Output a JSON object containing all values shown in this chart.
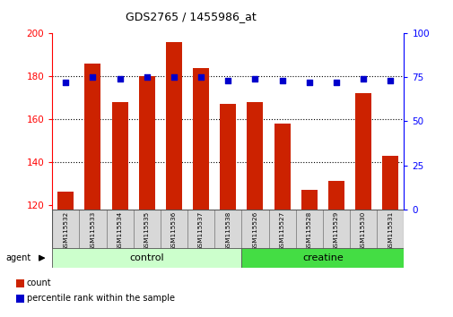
{
  "title": "GDS2765 / 1455986_at",
  "categories": [
    "GSM115532",
    "GSM115533",
    "GSM115534",
    "GSM115535",
    "GSM115536",
    "GSM115537",
    "GSM115538",
    "GSM115526",
    "GSM115527",
    "GSM115528",
    "GSM115529",
    "GSM115530",
    "GSM115531"
  ],
  "bar_values": [
    126,
    186,
    168,
    180,
    196,
    184,
    167,
    168,
    158,
    127,
    131,
    172,
    143
  ],
  "scatter_values": [
    72,
    75,
    74,
    75,
    75,
    75,
    73,
    74,
    73,
    72,
    72,
    74,
    73
  ],
  "bar_color": "#cc2200",
  "scatter_color": "#0000cc",
  "ylim_left": [
    118,
    200
  ],
  "ylim_right": [
    0,
    100
  ],
  "yticks_left": [
    120,
    140,
    160,
    180,
    200
  ],
  "yticks_right": [
    0,
    25,
    50,
    75,
    100
  ],
  "grid_color": "black",
  "n_control": 7,
  "n_creatine": 6,
  "control_color": "#ccffcc",
  "creatine_color": "#44dd44",
  "bar_bottom": 118,
  "legend_bar_label": "count",
  "legend_scatter_label": "percentile rank within the sample"
}
